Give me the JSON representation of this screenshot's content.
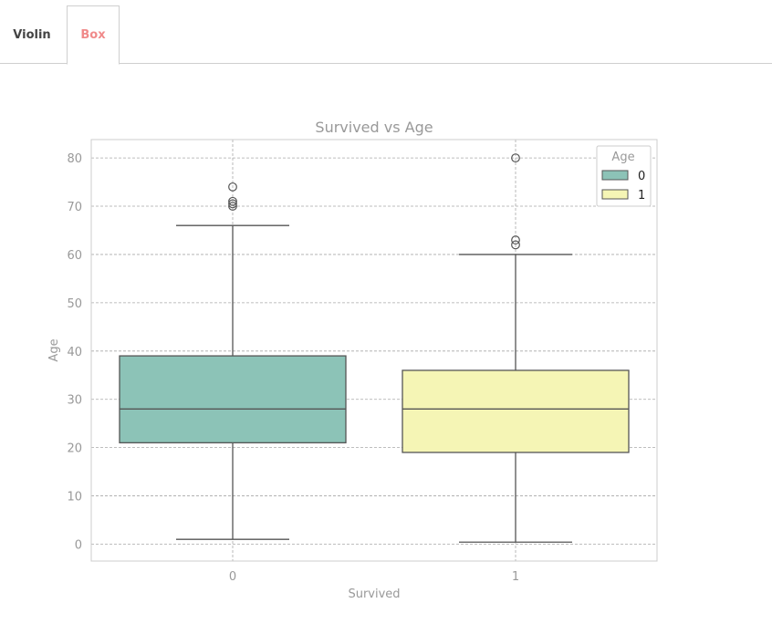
{
  "tabs": [
    {
      "label": "Violin",
      "active": false
    },
    {
      "label": "Box",
      "active": true
    }
  ],
  "colors": {
    "series0": "#8cc3b7",
    "series1": "#f5f5b5",
    "line": "#555555",
    "grid": "#a8a8a8",
    "text": "#999999",
    "active_tab": "#f08a8a"
  },
  "chart_data": {
    "type": "box",
    "title": "Survived vs Age",
    "xlabel": "Survived",
    "ylabel": "Age",
    "categories": [
      "0",
      "1"
    ],
    "ylim": [
      -3.5,
      83.8
    ],
    "yticks": [
      0,
      10,
      20,
      30,
      40,
      50,
      60,
      70,
      80
    ],
    "grid": true,
    "legend": {
      "title": "Age",
      "position": "top-right",
      "entries": [
        "0",
        "1"
      ]
    },
    "boxes": [
      {
        "category": "0",
        "whisker_low": 1,
        "q1": 21,
        "median": 28,
        "q3": 39,
        "whisker_high": 66,
        "outliers": [
          70,
          70.5,
          71,
          74
        ]
      },
      {
        "category": "1",
        "whisker_low": 0.42,
        "q1": 19,
        "median": 28,
        "q3": 36,
        "whisker_high": 60,
        "outliers": [
          62,
          63,
          80
        ]
      }
    ]
  }
}
